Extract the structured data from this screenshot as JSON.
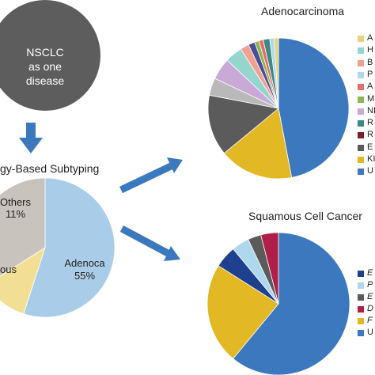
{
  "nsclc": {
    "line1": "NSCLC",
    "line2": "as one",
    "line3": "disease"
  },
  "subtyping": {
    "title": "gy-Based Subtyping",
    "slices": [
      {
        "label": "Adenoca",
        "pct": "55%",
        "value": 55,
        "color": "#a9cde9"
      },
      {
        "label": "Others",
        "pct": "11%",
        "value": 11,
        "color": "#f3df93"
      },
      {
        "label": "ous",
        "pct": "",
        "value": 34,
        "color": "#c9c3bd"
      }
    ]
  },
  "adeno": {
    "title": "Adenocarcinoma",
    "slices": [
      {
        "value": 47,
        "color": "#3b78bd"
      },
      {
        "value": 17,
        "color": "#e3b825"
      },
      {
        "value": 14,
        "color": "#5b5b5b"
      },
      {
        "value": 4,
        "color": "#b9b9b9"
      },
      {
        "value": 5,
        "color": "#c9a9d6"
      },
      {
        "value": 4,
        "color": "#95d5cd"
      },
      {
        "value": 2,
        "color": "#f1a092"
      },
      {
        "value": 1.5,
        "color": "#4c4c98"
      },
      {
        "value": 1,
        "color": "#8db655"
      },
      {
        "value": 1,
        "color": "#e86c6c"
      },
      {
        "value": 1.5,
        "color": "#3d8a84"
      },
      {
        "value": 1,
        "color": "#aed8ee"
      },
      {
        "value": 1,
        "color": "#e7d37a"
      }
    ],
    "legend": [
      {
        "label": "A",
        "color": "#e7d37a"
      },
      {
        "label": "H",
        "color": "#95d5cd"
      },
      {
        "label": "B",
        "color": "#f1a092"
      },
      {
        "label": "P",
        "color": "#aed8ee"
      },
      {
        "label": "A",
        "color": "#e86c6c"
      },
      {
        "label": "M",
        "color": "#8db655"
      },
      {
        "label": "NI",
        "color": "#c9a9d6"
      },
      {
        "label": "R",
        "color": "#3d8a84"
      },
      {
        "label": "R",
        "color": "#7a1f2e"
      },
      {
        "label": "E",
        "color": "#5b5b5b"
      },
      {
        "label": "KI",
        "color": "#e3b825"
      },
      {
        "label": "U",
        "color": "#3b78bd"
      }
    ]
  },
  "squamous": {
    "title": "Squamous Cell Cancer",
    "slices": [
      {
        "value": 61,
        "color": "#3b78bd"
      },
      {
        "value": 23,
        "color": "#e3b825"
      },
      {
        "value": 5,
        "color": "#1f3f8f"
      },
      {
        "value": 4,
        "color": "#aed8ee"
      },
      {
        "value": 3,
        "color": "#5b5b5b"
      },
      {
        "value": 4,
        "color": "#b01e4a"
      }
    ],
    "legend": [
      {
        "label": "E",
        "color": "#1f3f8f",
        "italic": true
      },
      {
        "label": "P",
        "color": "#aed8ee",
        "italic": true
      },
      {
        "label": "E",
        "color": "#5b5b5b",
        "italic": true
      },
      {
        "label": "D",
        "color": "#b01e4a",
        "italic": true
      },
      {
        "label": "F",
        "color": "#e3b825",
        "italic": true
      },
      {
        "label": "U",
        "color": "#3b78bd",
        "italic": false
      }
    ]
  }
}
